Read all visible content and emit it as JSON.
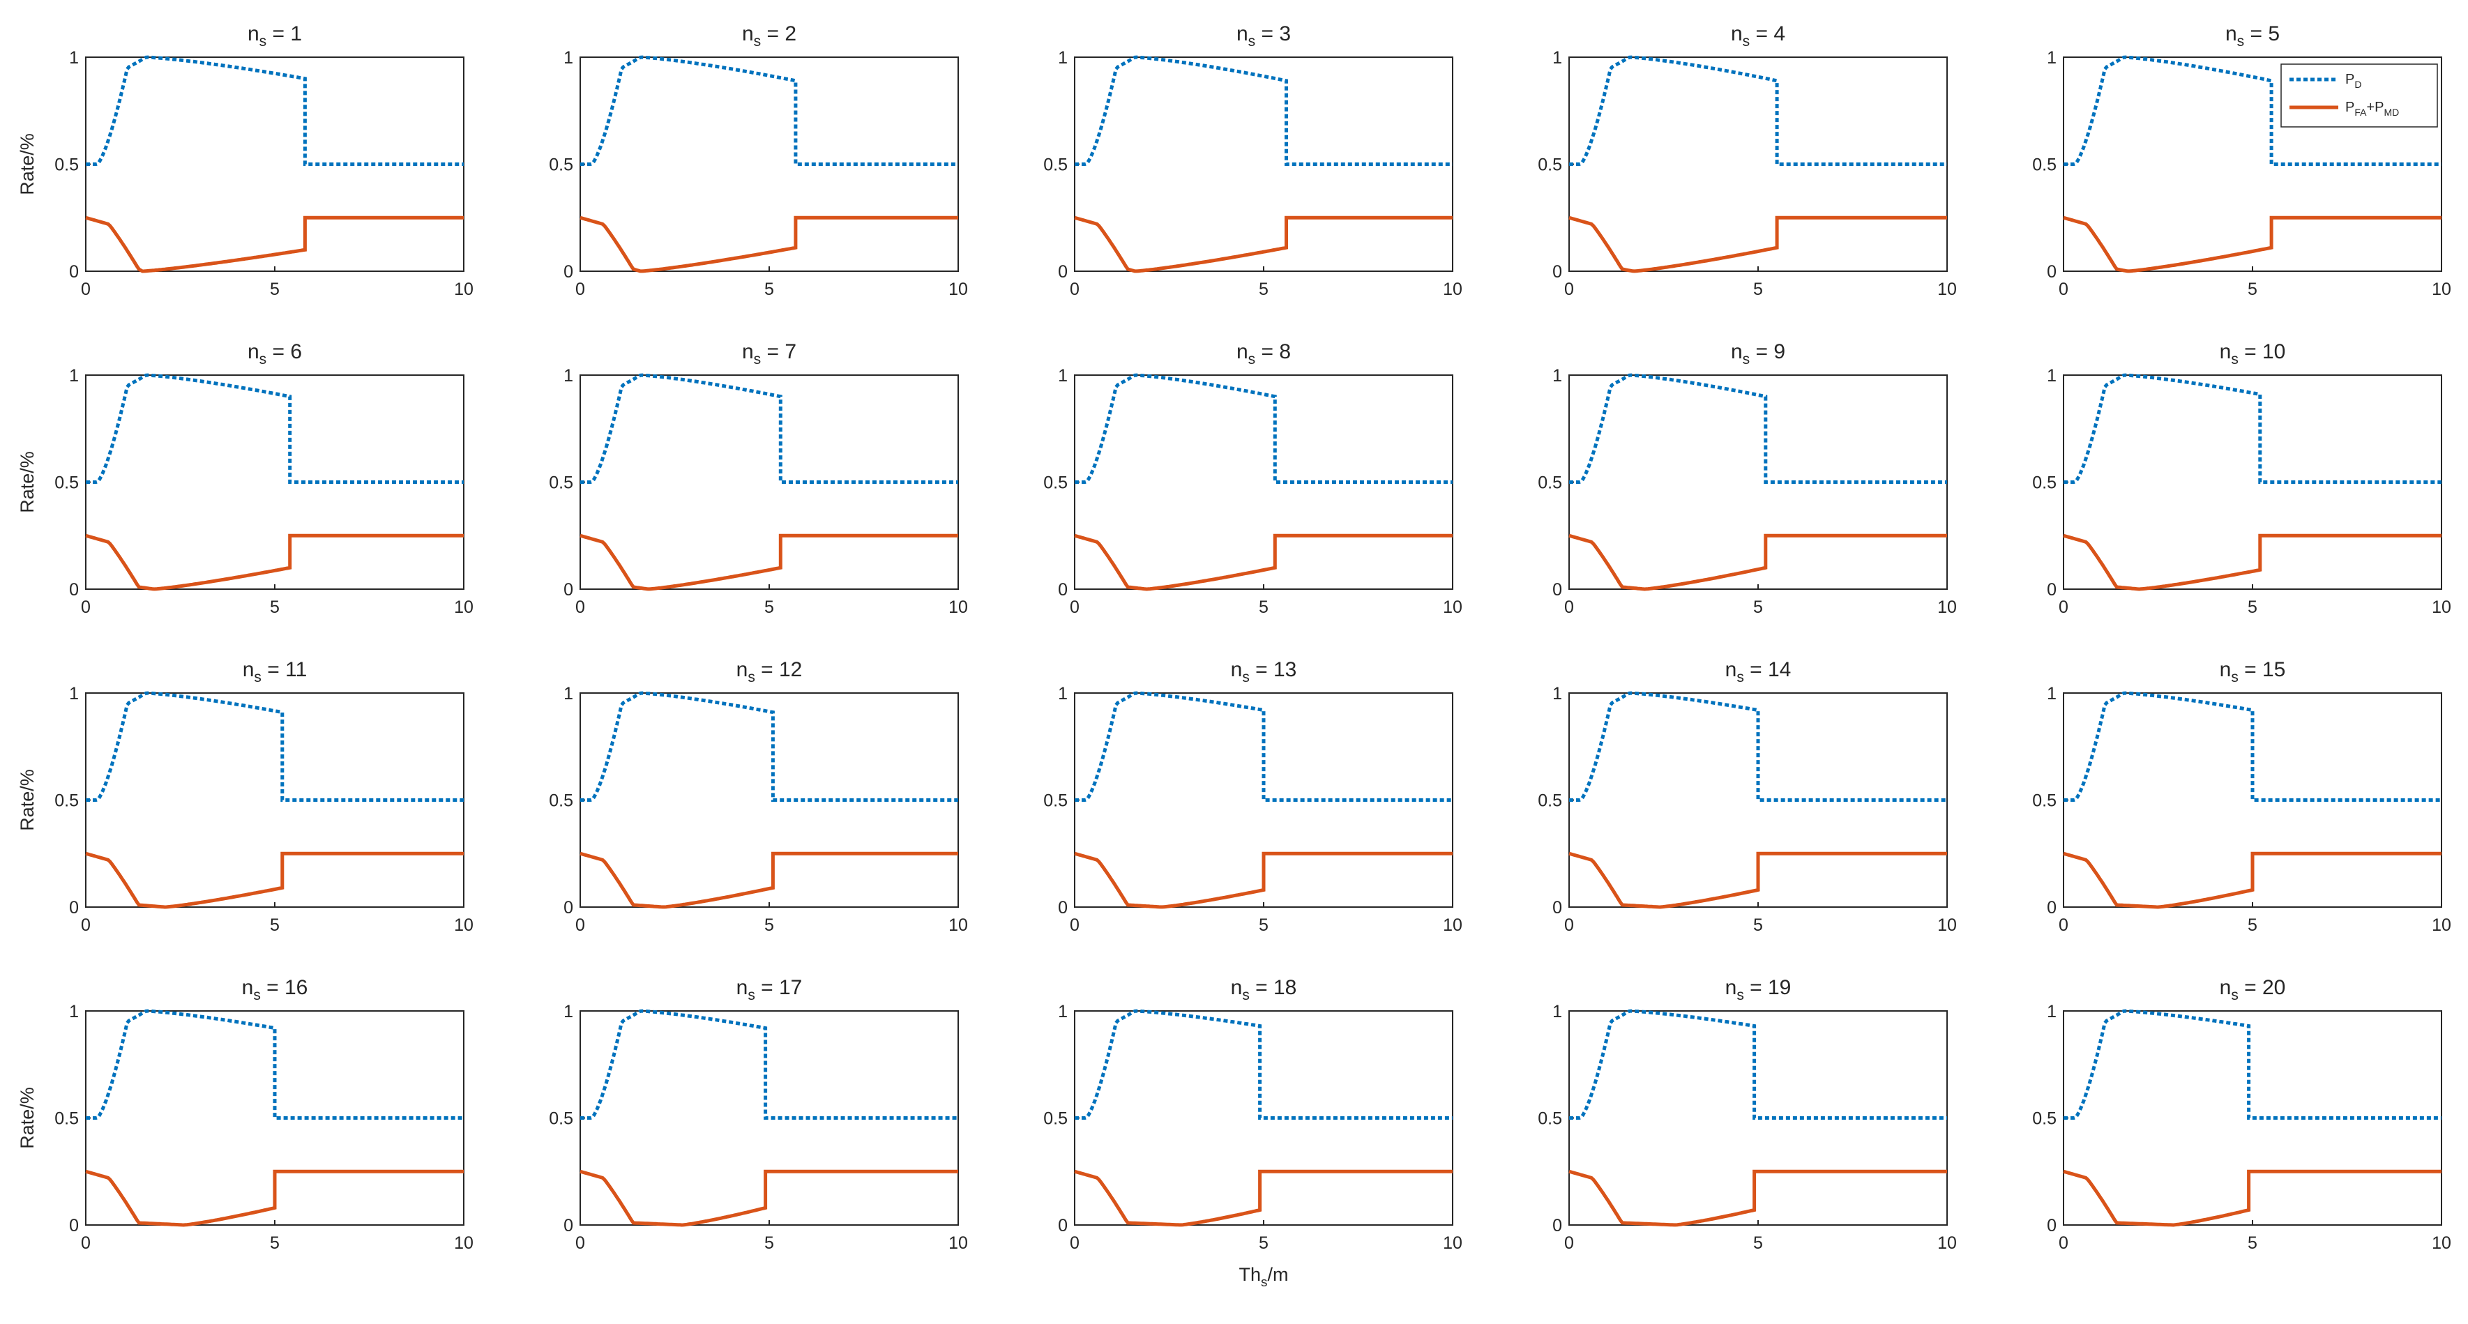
{
  "chart_data": {
    "type": "line",
    "layout": "4x5 grid of subplots",
    "colors": {
      "pd": "#0072BD",
      "err": "#D95319"
    },
    "xlabel": {
      "base": "Th",
      "sub": "s",
      "rest": "/m"
    },
    "ylabel": "Rate/%",
    "xlim": [
      0,
      10
    ],
    "ylim": [
      0,
      1
    ],
    "xticks": [
      "0",
      "5",
      "10"
    ],
    "yticks": [
      "0",
      "0.5",
      "1"
    ],
    "legend": {
      "placement": "top-right of panel n_s = 5",
      "entries": [
        {
          "key": "pd",
          "base": "P",
          "sub": "D",
          "mid": "",
          "base2": "",
          "sub2": ""
        },
        {
          "key": "err",
          "base": "P",
          "sub": "FA",
          "mid": "+P",
          "base2": "",
          "sub2": "MD"
        }
      ]
    },
    "panels": [
      {
        "n": "1",
        "title": {
          "base": "n",
          "sub": "s",
          "rest": " = 1"
        },
        "step": 5.8,
        "plateau": 0.9,
        "dip": 1.5
      },
      {
        "n": "2",
        "title": {
          "base": "n",
          "sub": "s",
          "rest": " = 2"
        },
        "step": 5.7,
        "plateau": 0.89,
        "dip": 1.6
      },
      {
        "n": "3",
        "title": {
          "base": "n",
          "sub": "s",
          "rest": " = 3"
        },
        "step": 5.6,
        "plateau": 0.89,
        "dip": 1.6
      },
      {
        "n": "4",
        "title": {
          "base": "n",
          "sub": "s",
          "rest": " = 4"
        },
        "step": 5.5,
        "plateau": 0.89,
        "dip": 1.7
      },
      {
        "n": "5",
        "title": {
          "base": "n",
          "sub": "s",
          "rest": " = 5"
        },
        "step": 5.5,
        "plateau": 0.89,
        "dip": 1.7
      },
      {
        "n": "6",
        "title": {
          "base": "n",
          "sub": "s",
          "rest": " = 6"
        },
        "step": 5.4,
        "plateau": 0.9,
        "dip": 1.8
      },
      {
        "n": "7",
        "title": {
          "base": "n",
          "sub": "s",
          "rest": " = 7"
        },
        "step": 5.3,
        "plateau": 0.9,
        "dip": 1.8
      },
      {
        "n": "8",
        "title": {
          "base": "n",
          "sub": "s",
          "rest": " = 8"
        },
        "step": 5.3,
        "plateau": 0.9,
        "dip": 1.9
      },
      {
        "n": "9",
        "title": {
          "base": "n",
          "sub": "s",
          "rest": " = 9"
        },
        "step": 5.2,
        "plateau": 0.9,
        "dip": 2.0
      },
      {
        "n": "10",
        "title": {
          "base": "n",
          "sub": "s",
          "rest": " = 10"
        },
        "step": 5.2,
        "plateau": 0.91,
        "dip": 2.0
      },
      {
        "n": "11",
        "title": {
          "base": "n",
          "sub": "s",
          "rest": " = 11"
        },
        "step": 5.2,
        "plateau": 0.91,
        "dip": 2.1
      },
      {
        "n": "12",
        "title": {
          "base": "n",
          "sub": "s",
          "rest": " = 12"
        },
        "step": 5.1,
        "plateau": 0.91,
        "dip": 2.2
      },
      {
        "n": "13",
        "title": {
          "base": "n",
          "sub": "s",
          "rest": " = 13"
        },
        "step": 5.0,
        "plateau": 0.92,
        "dip": 2.3
      },
      {
        "n": "14",
        "title": {
          "base": "n",
          "sub": "s",
          "rest": " = 14"
        },
        "step": 5.0,
        "plateau": 0.92,
        "dip": 2.4
      },
      {
        "n": "15",
        "title": {
          "base": "n",
          "sub": "s",
          "rest": " = 15"
        },
        "step": 5.0,
        "plateau": 0.92,
        "dip": 2.5
      },
      {
        "n": "16",
        "title": {
          "base": "n",
          "sub": "s",
          "rest": " = 16"
        },
        "step": 5.0,
        "plateau": 0.92,
        "dip": 2.6
      },
      {
        "n": "17",
        "title": {
          "base": "n",
          "sub": "s",
          "rest": " = 17"
        },
        "step": 4.9,
        "plateau": 0.92,
        "dip": 2.7
      },
      {
        "n": "18",
        "title": {
          "base": "n",
          "sub": "s",
          "rest": " = 18"
        },
        "step": 4.9,
        "plateau": 0.93,
        "dip": 2.8
      },
      {
        "n": "19",
        "title": {
          "base": "n",
          "sub": "s",
          "rest": " = 19"
        },
        "step": 4.9,
        "plateau": 0.93,
        "dip": 2.8
      },
      {
        "n": "20",
        "title": {
          "base": "n",
          "sub": "s",
          "rest": " = 20"
        },
        "step": 4.9,
        "plateau": 0.93,
        "dip": 2.9
      }
    ]
  }
}
